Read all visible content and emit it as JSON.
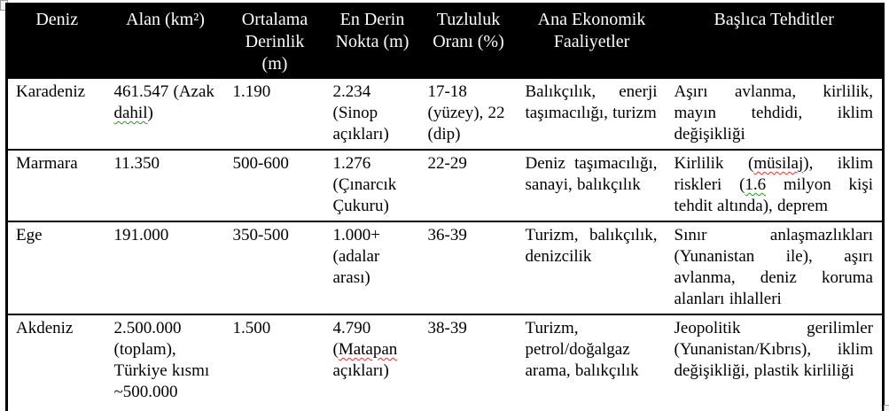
{
  "table": {
    "headers": [
      "Deniz",
      "Alan (km²)",
      "Ortalama Derinlik (m)",
      "En Derin Nokta (m)",
      "Tuzluluk Oranı (%)",
      "Ana Ekonomik Faaliyetler",
      "Başlıca Tehditler"
    ],
    "rows": [
      {
        "deniz": "Karadeniz",
        "alan": [
          {
            "t": "461.547 (Azak "
          },
          {
            "t": "dahil",
            "sq": "green"
          },
          {
            "t": ")"
          }
        ],
        "ortalama_derinlik": [
          {
            "t": "1.190"
          }
        ],
        "en_derin_nokta": [
          {
            "t": "2.234 (Sinop açıkları)"
          }
        ],
        "tuzluluk_orani": [
          {
            "t": "17-18 (yüzey), 22 (dip)"
          }
        ],
        "ekonomik_faaliyetler": [
          {
            "t": "Balıkçılık, enerji taşımacılığı, turizm"
          }
        ],
        "tehditler": [
          {
            "t": "Aşırı avlanma, kirlilik, mayın tehdidi, iklim değişikliği"
          }
        ]
      },
      {
        "deniz": "Marmara",
        "alan": [
          {
            "t": "11.350"
          }
        ],
        "ortalama_derinlik": [
          {
            "t": "500-600"
          }
        ],
        "en_derin_nokta": [
          {
            "t": "1.276 (Çınarcık Çukuru)"
          }
        ],
        "tuzluluk_orani": [
          {
            "t": "22-29"
          }
        ],
        "ekonomik_faaliyetler": [
          {
            "t": "Deniz taşımacılığı, sanayi, balıkçılık"
          }
        ],
        "tehditler": [
          {
            "t": "Kirlilik ("
          },
          {
            "t": "müsilaj",
            "sq": "red"
          },
          {
            "t": "), iklim riskleri ("
          },
          {
            "t": "1.6",
            "sq": "green"
          },
          {
            "t": " milyon kişi tehdit altında), deprem"
          }
        ]
      },
      {
        "deniz": "Ege",
        "alan": [
          {
            "t": "191.000"
          }
        ],
        "ortalama_derinlik": [
          {
            "t": "350-500"
          }
        ],
        "en_derin_nokta": [
          {
            "t": "1.000+ (adalar arası)"
          }
        ],
        "tuzluluk_orani": [
          {
            "t": "36-39"
          }
        ],
        "ekonomik_faaliyetler": [
          {
            "t": "Turizm, balıkçılık, denizcilik"
          }
        ],
        "tehditler": [
          {
            "t": "Sınır anlaşmazlıkları (Yunanistan ile), aşırı avlanma, deniz koruma alanları ihlalleri"
          }
        ]
      },
      {
        "deniz": "Akdeniz",
        "alan": [
          {
            "t": "2.500.000 (toplam), Türkiye kısmı ~500.000"
          }
        ],
        "ortalama_derinlik": [
          {
            "t": "1.500"
          }
        ],
        "en_derin_nokta": [
          {
            "t": "4.790 ("
          },
          {
            "t": "Matapan",
            "sq": "red"
          },
          {
            "t": " açıkları)"
          }
        ],
        "tuzluluk_orani": [
          {
            "t": "38-39"
          }
        ],
        "ekonomik_faaliyetler": [
          {
            "t": "Turizm, petrol/doğalgaz arama, balıkçılık"
          }
        ],
        "tehditler": [
          {
            "t": "Jeopolitik gerilimler (Yunanistan/Kıbrıs), iklim değişikliği, plastik kirliliği"
          }
        ]
      }
    ]
  },
  "colors": {
    "header_bg": "#000000",
    "header_text": "#ffffff",
    "body_text": "#000000",
    "border": "#000000",
    "squiggle_red": "#ff2a2a",
    "squiggle_green": "#1e9e1e"
  }
}
